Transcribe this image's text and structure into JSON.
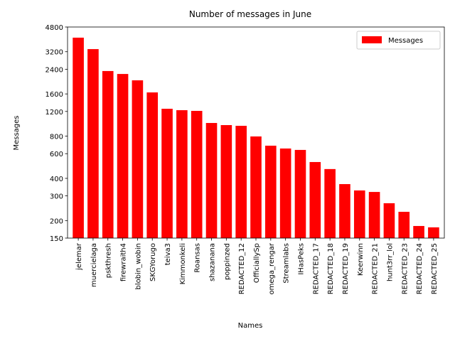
{
  "chart_data": {
    "type": "bar",
    "title": "Number of messages in June",
    "xlabel": "Names",
    "ylabel": "Messages",
    "categories": [
      "jelemar",
      "muercielaga",
      "pskthresh",
      "firewraith4",
      "blobin_wobin",
      "SKGYorugo",
      "teiva3",
      "Kimmonkeli",
      "Roansas",
      "shazanana",
      "poppinzed",
      "REDACTED_12",
      "OfficiallySp",
      "omega_rengar",
      "Streamlabs",
      "IHasPeks",
      "REDACTED_17",
      "REDACTED_18",
      "REDACTED_19",
      "Keerwinn",
      "REDACTED_21",
      "hunt3rr_lol",
      "REDACTED_23",
      "REDACTED_24",
      "REDACTED_25"
    ],
    "series": [
      {
        "name": "Messages",
        "color": "#ff0000",
        "values": [
          4030,
          3340,
          2330,
          2220,
          2000,
          1640,
          1254,
          1225,
          1211,
          993,
          959,
          948,
          796,
          684,
          653,
          638,
          523,
          466,
          364,
          328,
          320,
          266,
          231,
          183,
          179
        ]
      }
    ],
    "yscale": "log",
    "ylim": [
      150,
      4800
    ],
    "yticks": [
      150,
      200,
      300,
      400,
      600,
      800,
      1200,
      1600,
      2400,
      3200,
      4800
    ],
    "legend": "upper right",
    "grid": false
  }
}
